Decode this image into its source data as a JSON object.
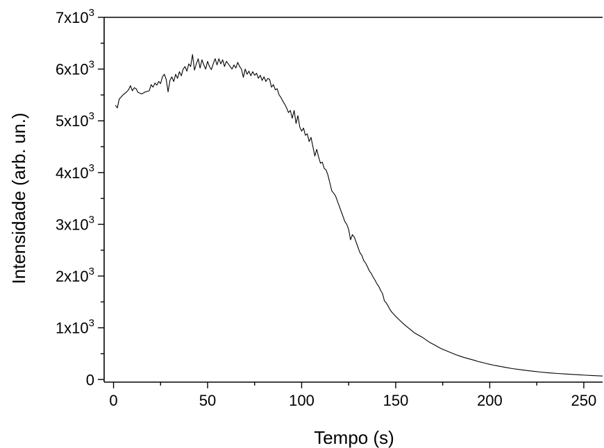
{
  "chart_data": {
    "type": "line",
    "title": "",
    "xlabel": "Tempo (s)",
    "ylabel": "Intensidade  (arb. un.)",
    "xlim": [
      -5,
      260
    ],
    "ylim": [
      -50,
      7000
    ],
    "x_ticks": [
      {
        "value": 0,
        "label": "0"
      },
      {
        "value": 50,
        "label": "50"
      },
      {
        "value": 100,
        "label": "100"
      },
      {
        "value": 150,
        "label": "150"
      },
      {
        "value": 200,
        "label": "200"
      },
      {
        "value": 250,
        "label": "250"
      }
    ],
    "x_minor_ticks": [
      25,
      75,
      125,
      175,
      225
    ],
    "y_ticks": [
      {
        "value": 0,
        "mantissa": "0",
        "exp": ""
      },
      {
        "value": 1000,
        "mantissa": "1x10",
        "exp": "3"
      },
      {
        "value": 2000,
        "mantissa": "2x10",
        "exp": "3"
      },
      {
        "value": 3000,
        "mantissa": "3x10",
        "exp": "3"
      },
      {
        "value": 4000,
        "mantissa": "4x10",
        "exp": "3"
      },
      {
        "value": 5000,
        "mantissa": "5x10",
        "exp": "3"
      },
      {
        "value": 6000,
        "mantissa": "6x10",
        "exp": "3"
      },
      {
        "value": 7000,
        "mantissa": "7x10",
        "exp": "3"
      }
    ],
    "y_minor_ticks": [
      500,
      1500,
      2500,
      3500,
      4500,
      5500,
      6500
    ],
    "grid": false,
    "legend": "none",
    "series": [
      {
        "color": "#000000",
        "points": [
          [
            1,
            5300
          ],
          [
            2,
            5250
          ],
          [
            3,
            5420
          ],
          [
            5,
            5500
          ],
          [
            7,
            5560
          ],
          [
            8,
            5600
          ],
          [
            9,
            5680
          ],
          [
            10,
            5580
          ],
          [
            11,
            5640
          ],
          [
            12,
            5620
          ],
          [
            13,
            5550
          ],
          [
            15,
            5520
          ],
          [
            17,
            5560
          ],
          [
            19,
            5580
          ],
          [
            20,
            5700
          ],
          [
            21,
            5650
          ],
          [
            22,
            5730
          ],
          [
            23,
            5690
          ],
          [
            24,
            5760
          ],
          [
            25,
            5720
          ],
          [
            26,
            5850
          ],
          [
            27,
            5900
          ],
          [
            28,
            5800
          ],
          [
            29,
            5560
          ],
          [
            30,
            5780
          ],
          [
            31,
            5850
          ],
          [
            32,
            5760
          ],
          [
            33,
            5900
          ],
          [
            34,
            5820
          ],
          [
            35,
            5950
          ],
          [
            36,
            5870
          ],
          [
            37,
            6000
          ],
          [
            38,
            6050
          ],
          [
            39,
            5960
          ],
          [
            40,
            6100
          ],
          [
            41,
            6050
          ],
          [
            42,
            6280
          ],
          [
            43,
            5980
          ],
          [
            44,
            6100
          ],
          [
            45,
            6200
          ],
          [
            46,
            6020
          ],
          [
            47,
            6180
          ],
          [
            48,
            6080
          ],
          [
            49,
            6000
          ],
          [
            50,
            6150
          ],
          [
            51,
            6050
          ],
          [
            52,
            5990
          ],
          [
            53,
            6100
          ],
          [
            54,
            6200
          ],
          [
            55,
            6080
          ],
          [
            56,
            6200
          ],
          [
            57,
            6100
          ],
          [
            58,
            6180
          ],
          [
            59,
            6050
          ],
          [
            60,
            6150
          ],
          [
            61,
            6100
          ],
          [
            62,
            6050
          ],
          [
            63,
            6000
          ],
          [
            64,
            6080
          ],
          [
            65,
            6020
          ],
          [
            66,
            6130
          ],
          [
            67,
            6050
          ],
          [
            68,
            6000
          ],
          [
            69,
            5840
          ],
          [
            70,
            6000
          ],
          [
            71,
            5900
          ],
          [
            72,
            5960
          ],
          [
            73,
            5870
          ],
          [
            74,
            5950
          ],
          [
            75,
            5880
          ],
          [
            76,
            5920
          ],
          [
            77,
            5820
          ],
          [
            78,
            5880
          ],
          [
            79,
            5780
          ],
          [
            80,
            5850
          ],
          [
            81,
            5760
          ],
          [
            82,
            5820
          ],
          [
            83,
            5800
          ],
          [
            84,
            5650
          ],
          [
            85,
            5700
          ],
          [
            86,
            5600
          ],
          [
            87,
            5620
          ],
          [
            88,
            5500
          ],
          [
            89,
            5450
          ],
          [
            90,
            5380
          ],
          [
            91,
            5320
          ],
          [
            92,
            5250
          ],
          [
            93,
            5160
          ],
          [
            94,
            5200
          ],
          [
            95,
            5050
          ],
          [
            96,
            5200
          ],
          [
            97,
            4950
          ],
          [
            98,
            5100
          ],
          [
            99,
            4880
          ],
          [
            100,
            4800
          ],
          [
            101,
            4860
          ],
          [
            102,
            4720
          ],
          [
            103,
            4750
          ],
          [
            104,
            4600
          ],
          [
            105,
            4680
          ],
          [
            106,
            4500
          ],
          [
            107,
            4320
          ],
          [
            108,
            4450
          ],
          [
            109,
            4300
          ],
          [
            110,
            4180
          ],
          [
            111,
            4200
          ],
          [
            112,
            4080
          ],
          [
            113,
            4050
          ],
          [
            114,
            3950
          ],
          [
            115,
            3800
          ],
          [
            116,
            3650
          ],
          [
            117,
            3600
          ],
          [
            118,
            3550
          ],
          [
            119,
            3450
          ],
          [
            120,
            3350
          ],
          [
            121,
            3250
          ],
          [
            122,
            3150
          ],
          [
            123,
            3050
          ],
          [
            124,
            3000
          ],
          [
            125,
            2900
          ],
          [
            126,
            2700
          ],
          [
            127,
            2800
          ],
          [
            128,
            2750
          ],
          [
            129,
            2650
          ],
          [
            130,
            2550
          ],
          [
            131,
            2450
          ],
          [
            132,
            2400
          ],
          [
            133,
            2300
          ],
          [
            134,
            2250
          ],
          [
            135,
            2180
          ],
          [
            136,
            2100
          ],
          [
            137,
            2050
          ],
          [
            138,
            1980
          ],
          [
            139,
            1920
          ],
          [
            140,
            1850
          ],
          [
            141,
            1800
          ],
          [
            142,
            1720
          ],
          [
            143,
            1660
          ],
          [
            144,
            1520
          ],
          [
            145,
            1480
          ],
          [
            146,
            1420
          ],
          [
            147,
            1350
          ],
          [
            148,
            1300
          ],
          [
            149,
            1260
          ],
          [
            150,
            1220
          ],
          [
            152,
            1150
          ],
          [
            154,
            1080
          ],
          [
            156,
            1020
          ],
          [
            158,
            960
          ],
          [
            160,
            900
          ],
          [
            162,
            860
          ],
          [
            164,
            820
          ],
          [
            166,
            770
          ],
          [
            168,
            720
          ],
          [
            170,
            680
          ],
          [
            172,
            640
          ],
          [
            174,
            600
          ],
          [
            176,
            570
          ],
          [
            178,
            540
          ],
          [
            180,
            510
          ],
          [
            182,
            480
          ],
          [
            184,
            455
          ],
          [
            186,
            430
          ],
          [
            188,
            410
          ],
          [
            190,
            390
          ],
          [
            192,
            370
          ],
          [
            194,
            345
          ],
          [
            196,
            330
          ],
          [
            198,
            310
          ],
          [
            200,
            295
          ],
          [
            203,
            270
          ],
          [
            206,
            250
          ],
          [
            209,
            230
          ],
          [
            212,
            212
          ],
          [
            215,
            196
          ],
          [
            218,
            182
          ],
          [
            221,
            168
          ],
          [
            224,
            156
          ],
          [
            227,
            144
          ],
          [
            230,
            134
          ],
          [
            233,
            125
          ],
          [
            236,
            117
          ],
          [
            239,
            110
          ],
          [
            242,
            103
          ],
          [
            245,
            96
          ],
          [
            248,
            90
          ],
          [
            251,
            84
          ],
          [
            254,
            78
          ],
          [
            257,
            73
          ],
          [
            260,
            68
          ]
        ]
      }
    ]
  }
}
